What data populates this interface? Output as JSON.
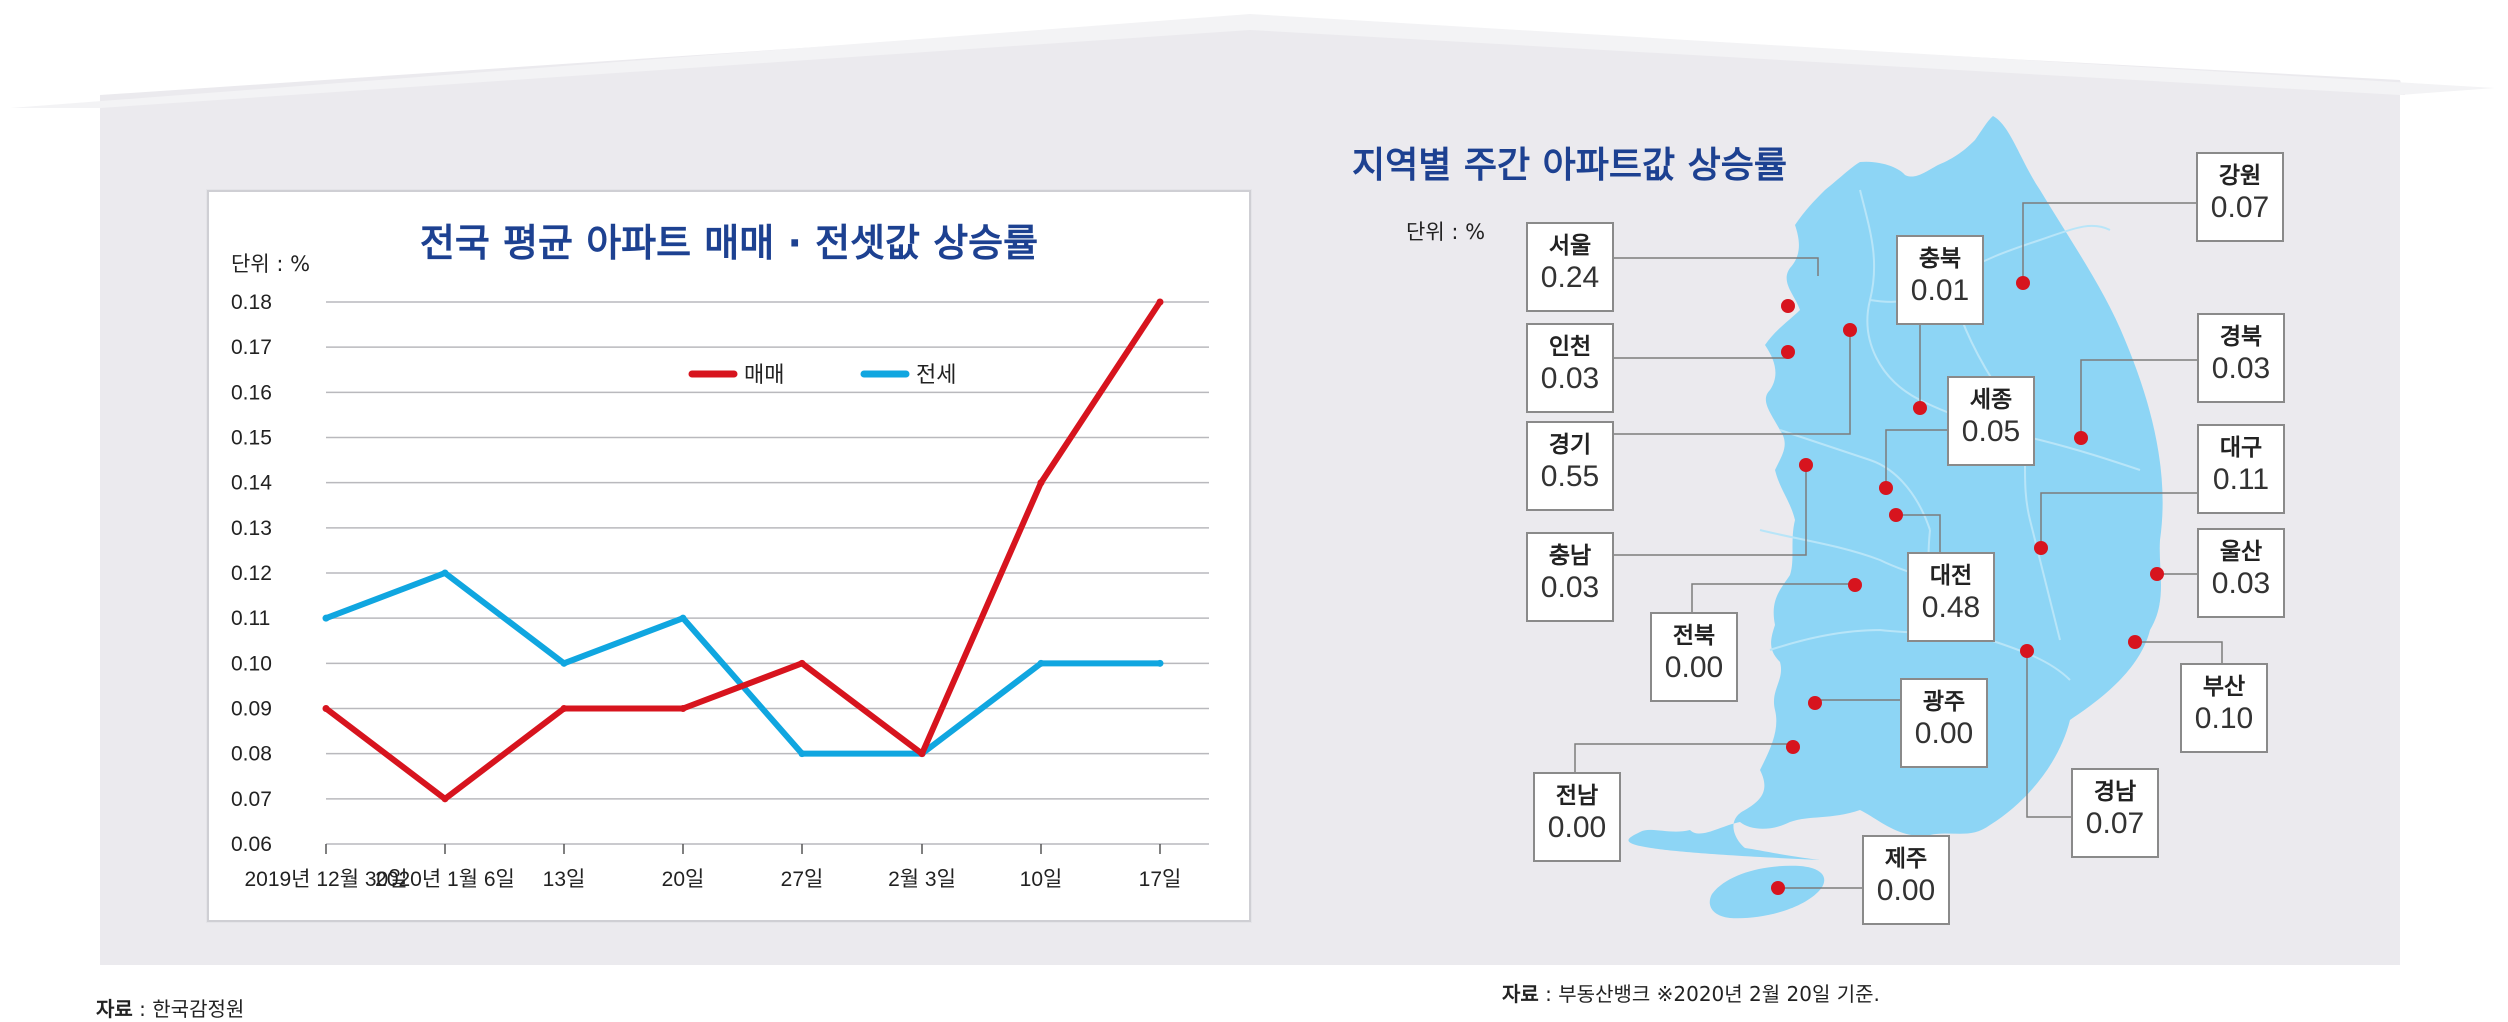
{
  "line_chart": {
    "title": "전국 평균 아파트 매매 · 전셋값 상승률",
    "unit": "단위 : %",
    "source_label": "자료",
    "source_text": " : 한국감정원"
  },
  "map_chart": {
    "title": "지역별 주간 아파트값 상승률",
    "unit": "단위 : %",
    "source_label": "자료",
    "source_text": " : 부동산뱅크 ※2020년 2월 20일 기준."
  },
  "chart_data": [
    {
      "type": "line",
      "title": "전국 평균 아파트 매매 · 전셋값 상승률",
      "ylabel": "단위 : %",
      "categories": [
        "2019년 12월 30일",
        "2020년 1월 6일",
        "13일",
        "20일",
        "27일",
        "2월 3일",
        "10일",
        "17일"
      ],
      "series": [
        {
          "name": "매매",
          "color": "#d7141e",
          "values": [
            0.09,
            0.07,
            0.09,
            0.09,
            0.1,
            0.08,
            0.14,
            0.18
          ]
        },
        {
          "name": "전세",
          "color": "#10a6e0",
          "values": [
            0.11,
            0.12,
            0.1,
            0.11,
            0.08,
            0.08,
            0.1,
            0.1
          ]
        }
      ],
      "ylim": [
        0.06,
        0.18
      ],
      "yticks": [
        "0.06",
        "0.07",
        "0.08",
        "0.09",
        "0.10",
        "0.11",
        "0.12",
        "0.13",
        "0.14",
        "0.15",
        "0.16",
        "0.17",
        "0.18"
      ],
      "grid": true,
      "legend": "top-right"
    },
    {
      "type": "map",
      "title": "지역별 주간 아파트값 상승률",
      "unit": "%",
      "regions": [
        {
          "name": "서울",
          "value": "0.24"
        },
        {
          "name": "인천",
          "value": "0.03"
        },
        {
          "name": "경기",
          "value": "0.55"
        },
        {
          "name": "충남",
          "value": "0.03"
        },
        {
          "name": "전북",
          "value": "0.00"
        },
        {
          "name": "전남",
          "value": "0.00"
        },
        {
          "name": "충북",
          "value": "0.01"
        },
        {
          "name": "세종",
          "value": "0.05"
        },
        {
          "name": "대전",
          "value": "0.48"
        },
        {
          "name": "광주",
          "value": "0.00"
        },
        {
          "name": "제주",
          "value": "0.00"
        },
        {
          "name": "강원",
          "value": "0.07"
        },
        {
          "name": "경북",
          "value": "0.03"
        },
        {
          "name": "대구",
          "value": "0.11"
        },
        {
          "name": "울산",
          "value": "0.03"
        },
        {
          "name": "부산",
          "value": "0.10"
        },
        {
          "name": "경남",
          "value": "0.07"
        }
      ]
    }
  ]
}
